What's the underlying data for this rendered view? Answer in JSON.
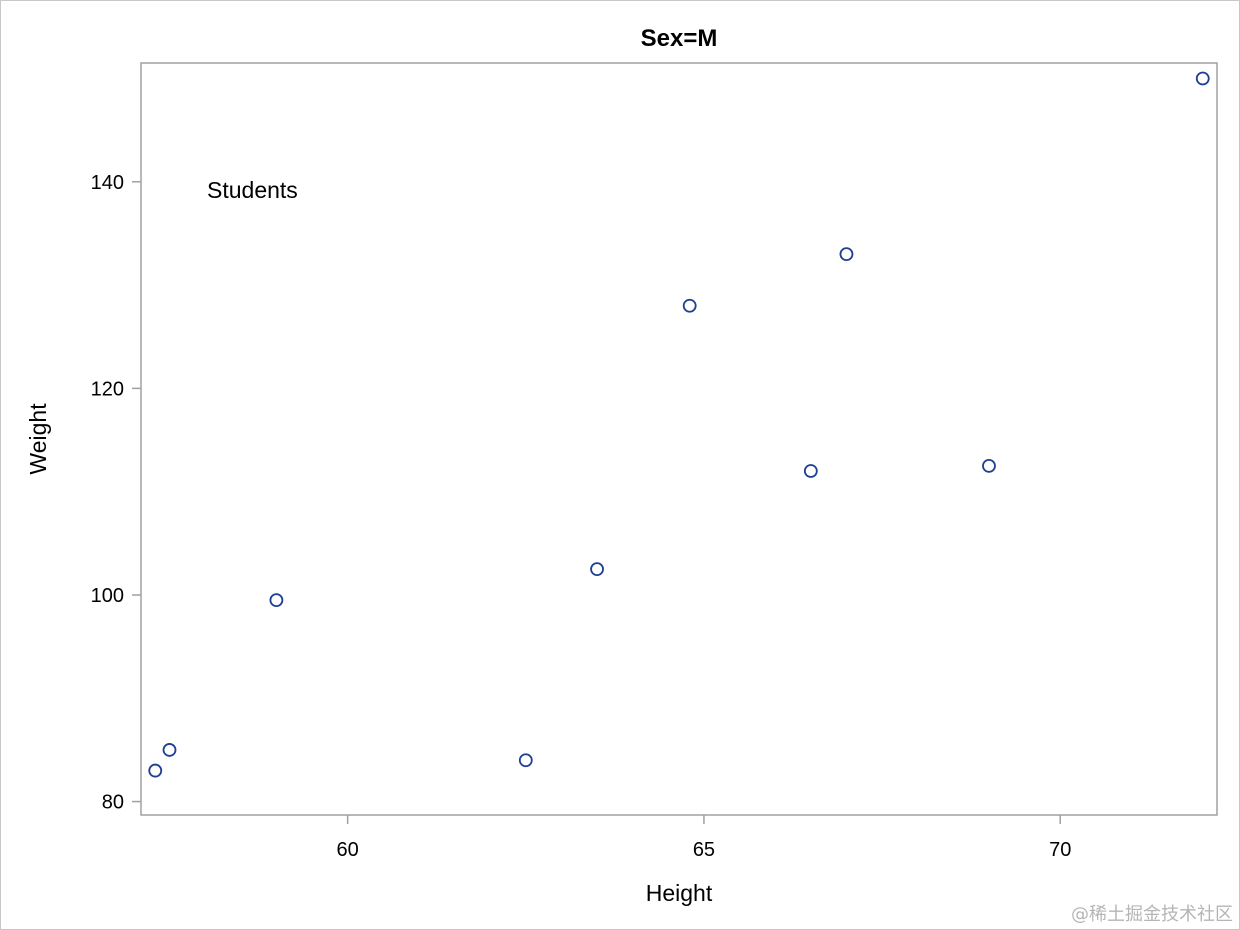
{
  "chart_data": {
    "type": "scatter",
    "title": "Sex=M",
    "xlabel": "Height",
    "ylabel": "Weight",
    "xlim": [
      57.1,
      72.2
    ],
    "ylim": [
      78.7,
      151.5
    ],
    "x_ticks": [
      60,
      65,
      70
    ],
    "y_ticks": [
      80,
      100,
      120,
      140
    ],
    "grid": false,
    "legend": "none",
    "annotation": "Students",
    "marker": "open-circle",
    "marker_color": "#1f3f95",
    "points": [
      {
        "x": 57.3,
        "y": 83.0
      },
      {
        "x": 57.5,
        "y": 85.0
      },
      {
        "x": 59.0,
        "y": 99.5
      },
      {
        "x": 62.5,
        "y": 84.0
      },
      {
        "x": 63.5,
        "y": 102.5
      },
      {
        "x": 64.8,
        "y": 128.0
      },
      {
        "x": 66.5,
        "y": 112.0
      },
      {
        "x": 67.0,
        "y": 133.0
      },
      {
        "x": 69.0,
        "y": 112.5
      },
      {
        "x": 72.0,
        "y": 150.0
      }
    ]
  },
  "watermark": "@稀土掘金技术社区"
}
